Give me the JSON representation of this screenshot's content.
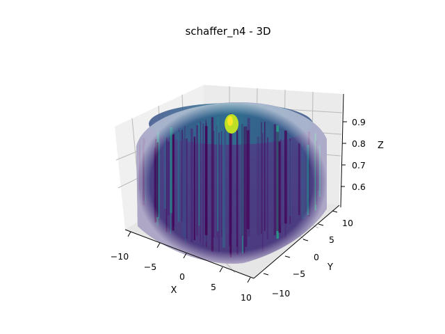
{
  "chart_data": {
    "type": "surface3d",
    "title": "schaffer_n4 - 3D",
    "xlabel": "X",
    "ylabel": "Y",
    "zlabel": "Z",
    "x_ticks": [
      "−10",
      "−5",
      "0",
      "5",
      "10"
    ],
    "y_ticks": [
      "−10",
      "−5",
      "0",
      "5",
      "10"
    ],
    "z_ticks": [
      "0.6",
      "0.7",
      "0.8",
      "0.9"
    ],
    "xlim": [
      -10,
      10
    ],
    "ylim": [
      -10,
      10
    ],
    "zlim": [
      0.55,
      0.98
    ],
    "colormap": "viridis",
    "grid": true,
    "pane_color": "#f0f0f0",
    "colorbar": false
  }
}
